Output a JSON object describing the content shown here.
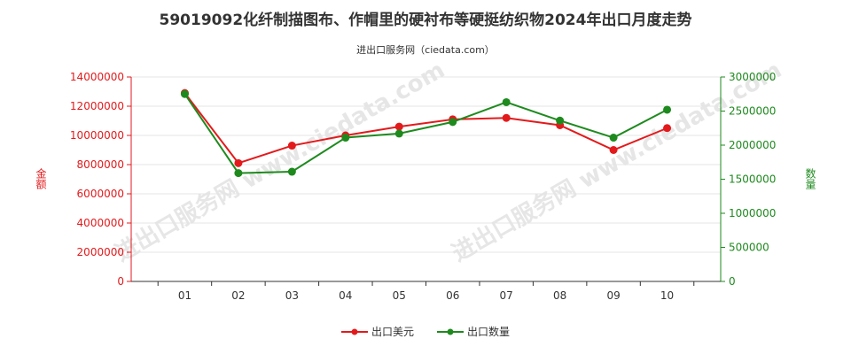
{
  "title": "59019092化纤制描图布、作帽里的硬衬布等硬挺纺织物2024年出口月度走势",
  "subtitle": "进出口服务网（ciedata.com）",
  "watermark": "进出口服务网 www.ciedata.com",
  "colors": {
    "value": "#e31a1c",
    "quantity": "#1e8a1e",
    "axis": "#333333"
  },
  "chart_data": {
    "type": "line",
    "categories": [
      "01",
      "02",
      "03",
      "04",
      "05",
      "06",
      "07",
      "08",
      "09",
      "10"
    ],
    "y_left": {
      "label": "金额",
      "range": [
        0,
        14000000
      ],
      "ticks": [
        "0",
        "2000000",
        "4000000",
        "6000000",
        "8000000",
        "10000000",
        "12000000",
        "14000000"
      ]
    },
    "y_right": {
      "label": "数量",
      "range": [
        0,
        3000000
      ],
      "ticks": [
        "0",
        "500000",
        "1000000",
        "1500000",
        "2000000",
        "2500000",
        "3000000"
      ]
    },
    "series": [
      {
        "name": "出口美元",
        "axis": "left",
        "values": [
          12900000,
          8100000,
          9300000,
          10000000,
          10600000,
          11100000,
          11200000,
          10700000,
          9000000,
          10500000
        ]
      },
      {
        "name": "出口数量",
        "axis": "right",
        "values": [
          2750000,
          1590000,
          1610000,
          2110000,
          2170000,
          2340000,
          2630000,
          2360000,
          2110000,
          2520000
        ]
      }
    ],
    "grid": "horizontal",
    "legend": "bottom-center"
  }
}
